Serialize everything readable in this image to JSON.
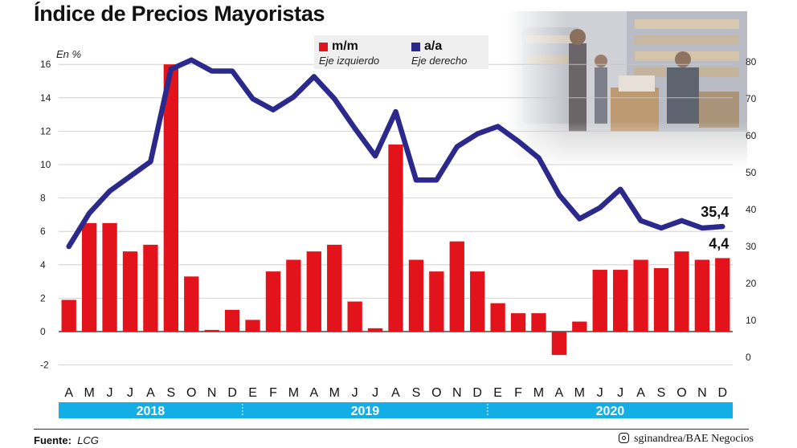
{
  "title": "Índice de Precios Mayoristas",
  "units_label": "En %",
  "legend": [
    {
      "name": "m/m",
      "sub": "Eje izquierdo",
      "color": "#e3131b"
    },
    {
      "name": "a/a",
      "sub": "Eje derecho",
      "color": "#2b2a8c"
    }
  ],
  "chart_data": {
    "type": "bar",
    "categories": [
      "A",
      "M",
      "J",
      "J",
      "A",
      "S",
      "O",
      "N",
      "D",
      "E",
      "F",
      "M",
      "A",
      "M",
      "J",
      "J",
      "A",
      "S",
      "O",
      "N",
      "D",
      "E",
      "F",
      "M",
      "A",
      "M",
      "J",
      "J",
      "A",
      "S",
      "O",
      "N",
      "D"
    ],
    "years": [
      {
        "label": "2018",
        "from": 0,
        "to": 8
      },
      {
        "label": "2019",
        "from": 9,
        "to": 20
      },
      {
        "label": "2020",
        "from": 21,
        "to": 32
      }
    ],
    "series": [
      {
        "name": "m/m",
        "type": "bar",
        "axis": "left",
        "color": "#e3131b",
        "values": [
          1.9,
          6.5,
          6.5,
          4.8,
          5.2,
          16.0,
          3.3,
          0.1,
          1.3,
          0.7,
          3.6,
          4.3,
          4.8,
          5.2,
          1.8,
          0.2,
          11.2,
          4.3,
          3.6,
          5.4,
          3.6,
          1.7,
          1.1,
          1.1,
          -1.4,
          0.6,
          3.7,
          3.7,
          4.3,
          3.8,
          4.8,
          4.3,
          4.4
        ]
      },
      {
        "name": "a/a",
        "type": "line",
        "axis": "right",
        "color": "#2b2a8c",
        "values": [
          30.0,
          39.0,
          45.0,
          49.0,
          53.0,
          78.0,
          80.5,
          77.5,
          77.5,
          70.0,
          67.0,
          70.5,
          76.0,
          70.0,
          62.0,
          54.5,
          66.5,
          48.0,
          48.0,
          57.0,
          60.5,
          62.5,
          58.5,
          54.0,
          44.0,
          37.5,
          40.5,
          45.5,
          37.0,
          35.0,
          37.0,
          35.0,
          35.4
        ]
      }
    ],
    "left_axis": {
      "min": -2,
      "max": 16,
      "ticks": [
        -2,
        0,
        2,
        4,
        6,
        8,
        10,
        12,
        14,
        16
      ]
    },
    "right_axis": {
      "min": 0,
      "max": 80,
      "ticks": [
        0,
        10,
        20,
        30,
        40,
        50,
        60,
        70,
        80
      ]
    },
    "end_labels": {
      "line": "35,4",
      "bar": "4,4"
    },
    "grid": true
  },
  "footer": {
    "source_label": "Fuente:",
    "source_value": "LCG",
    "credit": "sginandrea/BAE Negocios",
    "credit_icon": "instagram-icon"
  }
}
